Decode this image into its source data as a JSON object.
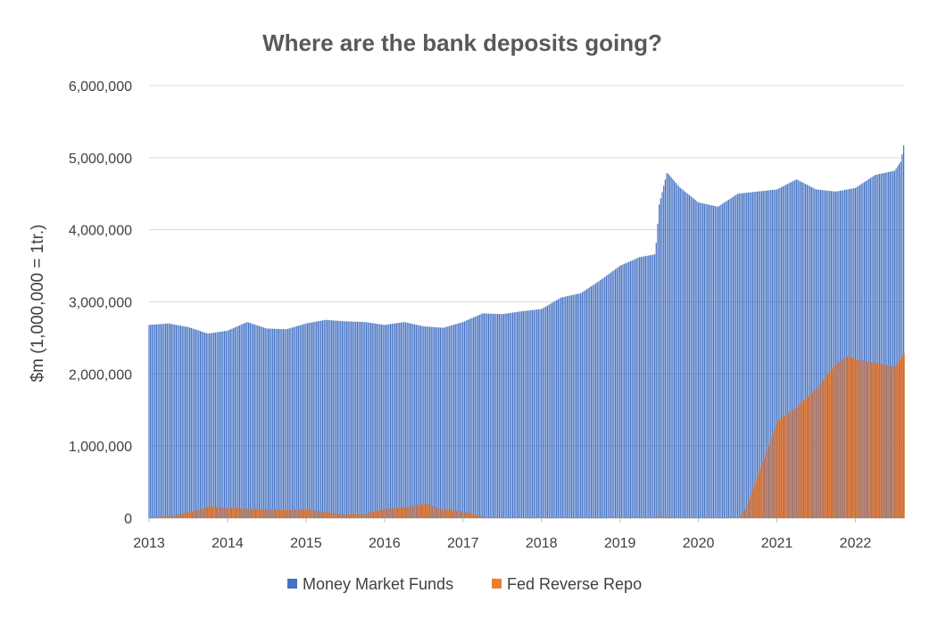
{
  "chart_data": {
    "type": "bar",
    "title": "Where are the bank deposits going?",
    "ylabel": "$m (1,000,000 = 1tr.)",
    "xlabel": "",
    "ylim": [
      0,
      6000000
    ],
    "y_ticks": [
      "0",
      "1,000,000",
      "2,000,000",
      "3,000,000",
      "4,000,000",
      "5,000,000",
      "6,000,000"
    ],
    "x_ticks": [
      "2013",
      "2014",
      "2015",
      "2016",
      "2017",
      "2018",
      "2019",
      "2020",
      "2021",
      "2022"
    ],
    "xlim": [
      2013.0,
      2022.62
    ],
    "grid": true,
    "legend_position": "bottom",
    "colors": {
      "Money Market Funds": "#4472c4",
      "Fed Reverse Repo": "#ed7d31",
      "grid": "#d9d9d9"
    },
    "series": [
      {
        "name": "Money Market Funds",
        "x": [
          2013.0,
          2013.25,
          2013.5,
          2013.75,
          2014.0,
          2014.25,
          2014.5,
          2014.75,
          2015.0,
          2015.25,
          2015.5,
          2015.75,
          2016.0,
          2016.25,
          2016.5,
          2016.75,
          2017.0,
          2017.25,
          2017.5,
          2017.75,
          2018.0,
          2018.25,
          2018.5,
          2018.75,
          2019.0,
          2019.25,
          2019.45,
          2019.5,
          2019.6,
          2019.75,
          2020.0,
          2020.25,
          2020.5,
          2020.75,
          2021.0,
          2021.25,
          2021.5,
          2021.75,
          2022.0,
          2022.25,
          2022.5,
          2022.58,
          2022.62
        ],
        "values": [
          2680000,
          2700000,
          2650000,
          2560000,
          2600000,
          2720000,
          2630000,
          2620000,
          2700000,
          2750000,
          2730000,
          2720000,
          2680000,
          2720000,
          2660000,
          2640000,
          2720000,
          2840000,
          2830000,
          2870000,
          2900000,
          3060000,
          3120000,
          3300000,
          3500000,
          3620000,
          3660000,
          4350000,
          4800000,
          4600000,
          4380000,
          4320000,
          4500000,
          4530000,
          4560000,
          4700000,
          4560000,
          4530000,
          4580000,
          4760000,
          4820000,
          4950000,
          5200000
        ]
      },
      {
        "name": "Fed Reverse Repo",
        "x": [
          2013.0,
          2013.25,
          2013.5,
          2013.75,
          2014.0,
          2014.25,
          2014.5,
          2014.75,
          2015.0,
          2015.25,
          2015.5,
          2015.75,
          2016.0,
          2016.25,
          2016.5,
          2016.75,
          2017.0,
          2017.25,
          2017.5,
          2017.75,
          2018.0,
          2018.25,
          2018.5,
          2018.75,
          2019.0,
          2019.25,
          2019.5,
          2019.75,
          2020.0,
          2020.25,
          2020.5,
          2020.6,
          2020.75,
          2020.9,
          2021.0,
          2021.25,
          2021.5,
          2021.75,
          2021.9,
          2022.0,
          2022.25,
          2022.5,
          2022.62
        ],
        "values": [
          0,
          30000,
          80000,
          160000,
          140000,
          130000,
          120000,
          110000,
          120000,
          80000,
          50000,
          60000,
          130000,
          150000,
          200000,
          120000,
          90000,
          20000,
          0,
          0,
          0,
          0,
          0,
          0,
          0,
          0,
          20000,
          0,
          0,
          0,
          0,
          150000,
          600000,
          1050000,
          1350000,
          1550000,
          1800000,
          2150000,
          2250000,
          2200000,
          2150000,
          2100000,
          2300000
        ]
      }
    ]
  }
}
